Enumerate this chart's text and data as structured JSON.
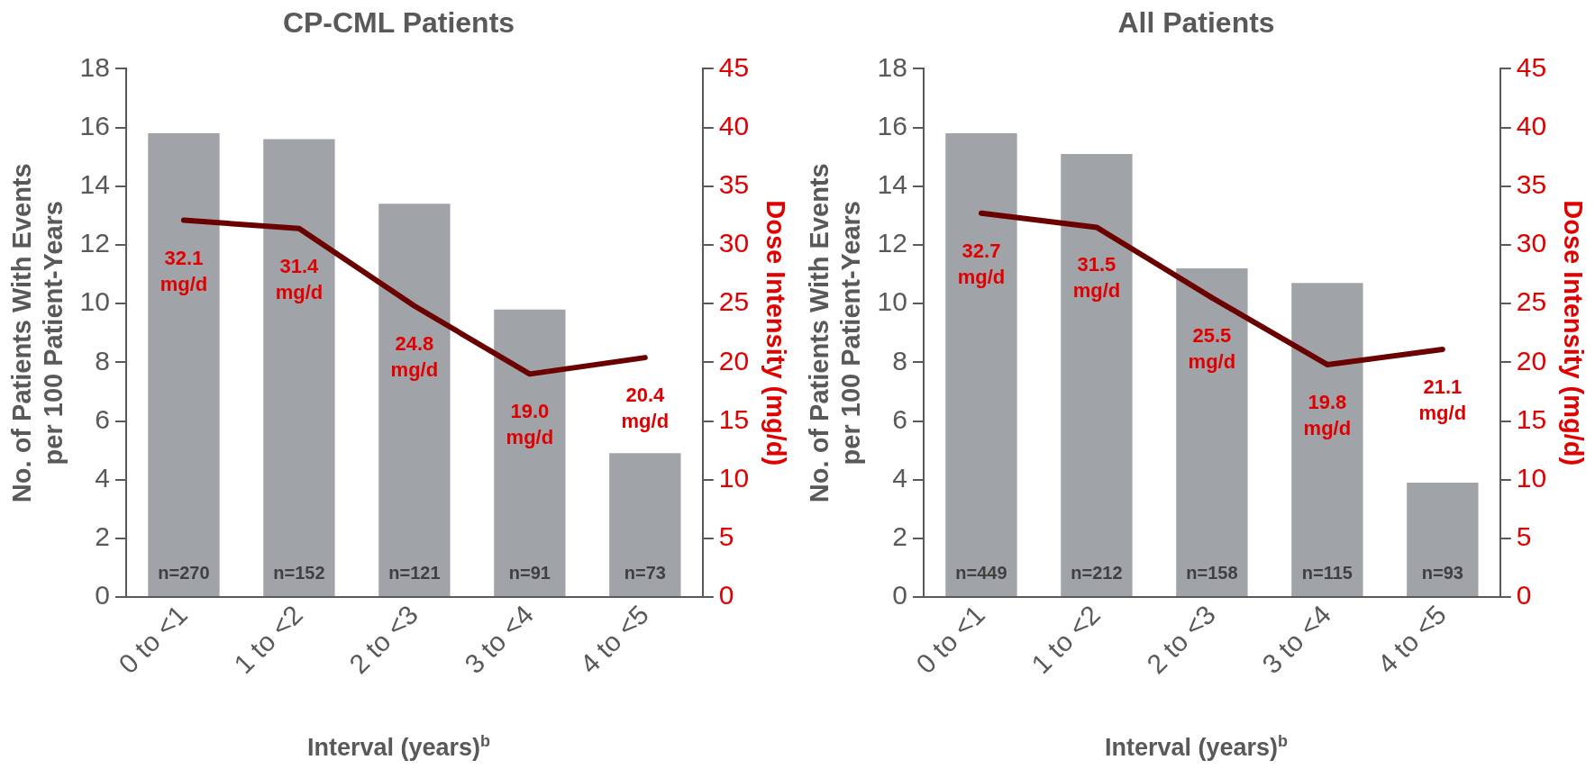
{
  "chart_data": [
    {
      "type": "bar",
      "title": "CP-CML Patients",
      "xlabel": "Interval (years)$^{b}$",
      "ylabel": "No. of Patients With Events per 100 Patient-Years",
      "y2label": "Dose Intensity (mg/d)",
      "categories": [
        "0 to <1",
        "1 to <2",
        "2 to <3",
        "3 to <4",
        "4 to <5"
      ],
      "series": [
        {
          "color": "#a0a3a8",
          "values": [
            15.8,
            15.6,
            13.4,
            9.8,
            4.9
          ]
        },
        {
          "type": "line",
          "axis": "y2",
          "color": "#6b0000",
          "values": [
            32.1,
            31.4,
            24.8,
            19.0,
            20.4
          ],
          "value_labels": [
            "32.1 mg/d",
            "31.4 mg/d",
            "24.8 mg/d",
            "19.0 mg/d",
            "20.4 mg/d"
          ]
        }
      ],
      "annotations": [
        "n=270",
        "n=152",
        "n=121",
        "n=91",
        "n=73"
      ],
      "ylim": [
        0,
        18
      ],
      "yticks": [
        0,
        2,
        4,
        6,
        8,
        10,
        12,
        14,
        16,
        18
      ],
      "y2lim": [
        0,
        45
      ],
      "y2ticks": [
        0,
        5,
        10,
        15,
        20,
        25,
        30,
        35,
        40,
        45
      ],
      "grid": false,
      "legend": false,
      "marker": "none"
    },
    {
      "type": "bar",
      "title": "All Patients",
      "xlabel": "Interval (years)$^{b}$",
      "ylabel": "No. of Patients With Events per 100 Patient-Years",
      "y2label": "Dose Intensity (mg/d)",
      "categories": [
        "0 to <1",
        "1 to <2",
        "2 to <3",
        "3 to <4",
        "4 to <5"
      ],
      "series": [
        {
          "color": "#a0a3a8",
          "values": [
            15.8,
            15.1,
            11.2,
            10.7,
            3.9
          ]
        },
        {
          "type": "line",
          "axis": "y2",
          "color": "#6b0000",
          "values": [
            32.7,
            31.5,
            25.5,
            19.8,
            21.1
          ],
          "value_labels": [
            "32.7 mg/d",
            "31.5 mg/d",
            "25.5 mg/d",
            "19.8 mg/d",
            "21.1 mg/d"
          ]
        }
      ],
      "annotations": [
        "n=449",
        "n=212",
        "n=158",
        "n=115",
        "n=93"
      ],
      "ylim": [
        0,
        18
      ],
      "yticks": [
        0,
        2,
        4,
        6,
        8,
        10,
        12,
        14,
        16,
        18
      ],
      "y2lim": [
        0,
        45
      ],
      "y2ticks": [
        0,
        5,
        10,
        15,
        20,
        25,
        30,
        35,
        40,
        45
      ],
      "grid": false,
      "legend": false,
      "marker": "none"
    }
  ]
}
